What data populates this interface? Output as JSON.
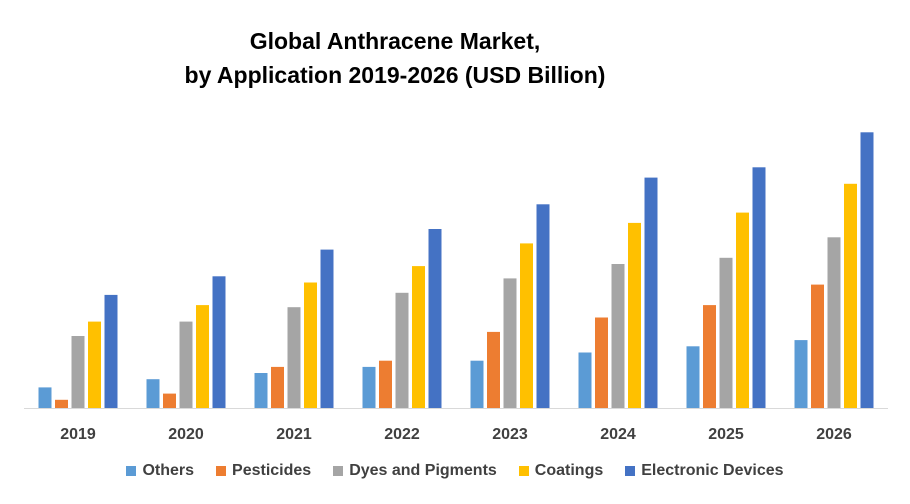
{
  "chart_data": {
    "type": "bar",
    "title_lines": [
      "Global Anthracene Market,",
      "by Application 2019-2026 (USD Billion)"
    ],
    "categories": [
      "2019",
      "2020",
      "2021",
      "2022",
      "2023",
      "2024",
      "2025",
      "2026"
    ],
    "series": [
      {
        "name": "Others",
        "color": "#5B9BD5",
        "values": [
          1.0,
          1.4,
          1.7,
          2.0,
          2.3,
          2.7,
          3.0,
          3.3
        ]
      },
      {
        "name": "Pesticides",
        "color": "#ED7D31",
        "values": [
          0.4,
          0.7,
          2.0,
          2.3,
          3.7,
          4.4,
          5.0,
          6.0
        ]
      },
      {
        "name": "Dyes and Pigments",
        "color": "#A5A5A5",
        "values": [
          3.5,
          4.2,
          4.9,
          5.6,
          6.3,
          7.0,
          7.3,
          8.3
        ]
      },
      {
        "name": "Coatings",
        "color": "#FFC000",
        "values": [
          4.2,
          5.0,
          6.1,
          6.9,
          8.0,
          9.0,
          9.5,
          10.9
        ]
      },
      {
        "name": "Electronic Devices",
        "color": "#4472C4",
        "values": [
          5.5,
          6.4,
          7.7,
          8.7,
          9.9,
          11.2,
          11.7,
          13.4
        ]
      }
    ],
    "xlabel": "",
    "ylabel": "",
    "ylim": [
      0,
      14
    ],
    "grid": false,
    "legend_position": "bottom"
  }
}
